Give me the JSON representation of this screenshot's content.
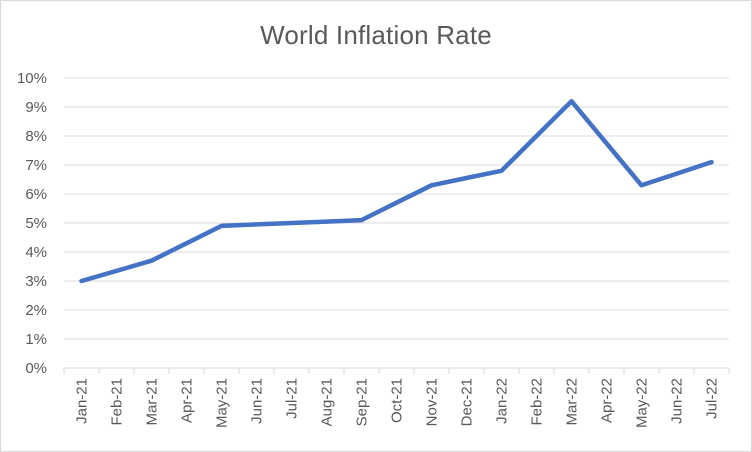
{
  "chart_data": {
    "type": "line",
    "title": "World Inflation Rate",
    "xlabel": "",
    "ylabel": "",
    "categories": [
      "Jan-21",
      "Feb-21",
      "Mar-21",
      "Apr-21",
      "May-21",
      "Jun-21",
      "Jul-21",
      "Aug-21",
      "Sep-21",
      "Oct-21",
      "Nov-21",
      "Dec-21",
      "Jan-22",
      "Feb-22",
      "Mar-22",
      "Apr-22",
      "May-22",
      "Jun-22",
      "Jul-22"
    ],
    "series": [
      {
        "values": [
          3.0,
          3.35,
          3.7,
          4.3,
          4.9,
          4.95,
          5.0,
          5.05,
          5.1,
          5.7,
          6.3,
          6.55,
          6.8,
          8.0,
          9.2,
          7.75,
          6.3,
          6.7,
          7.1
        ],
        "color": "#4472c4"
      }
    ],
    "ylim": [
      0,
      10
    ],
    "yticks": [
      "0%",
      "1%",
      "2%",
      "3%",
      "4%",
      "5%",
      "6%",
      "7%",
      "8%",
      "9%",
      "10%"
    ],
    "grid": true,
    "legend": "none",
    "colors": {
      "gridline": "#d9d9d9",
      "text": "#595959"
    }
  }
}
